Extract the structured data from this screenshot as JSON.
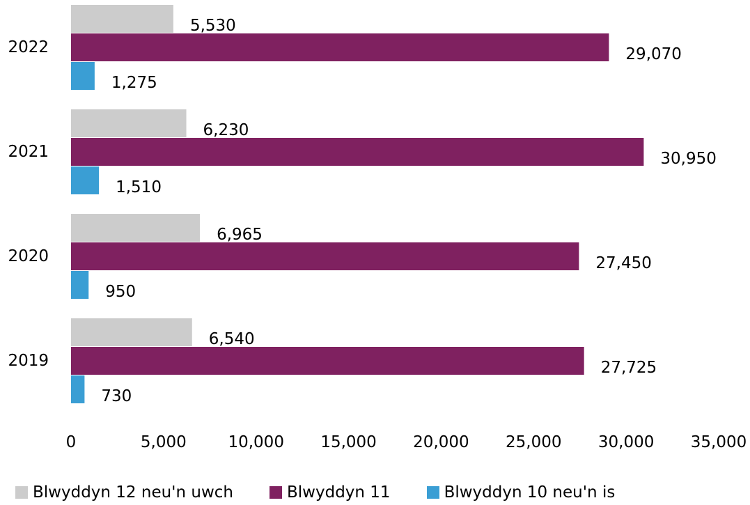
{
  "chart_data": {
    "type": "bar",
    "orientation": "horizontal",
    "categories": [
      "2022",
      "2021",
      "2020",
      "2019"
    ],
    "series": [
      {
        "name": "Blwyddyn 12 neu'n uwch",
        "color": "#cccccc",
        "values": [
          5530,
          6230,
          6965,
          6540
        ],
        "labels": [
          "5,530",
          "6,230",
          "6,965",
          "6,540"
        ]
      },
      {
        "name": "Blwyddyn 11",
        "color": "#7f2160",
        "values": [
          29070,
          30950,
          27450,
          27725
        ],
        "labels": [
          "29,070",
          "30,950",
          "27,450",
          "27,725"
        ]
      },
      {
        "name": "Blwyddyn 10 neu'n is",
        "color": "#3a9ed4",
        "values": [
          1275,
          1510,
          950,
          730
        ],
        "labels": [
          "1,275",
          "1,510",
          "950",
          "730"
        ]
      }
    ],
    "xlim": [
      0,
      35000
    ],
    "x_ticks": [
      0,
      5000,
      10000,
      15000,
      20000,
      25000,
      30000,
      35000
    ],
    "x_tick_labels": [
      "0",
      "5,000",
      "10,000",
      "15,000",
      "20,000",
      "25,000",
      "30,000",
      "35,000"
    ],
    "grid": false,
    "legend_position": "bottom"
  }
}
